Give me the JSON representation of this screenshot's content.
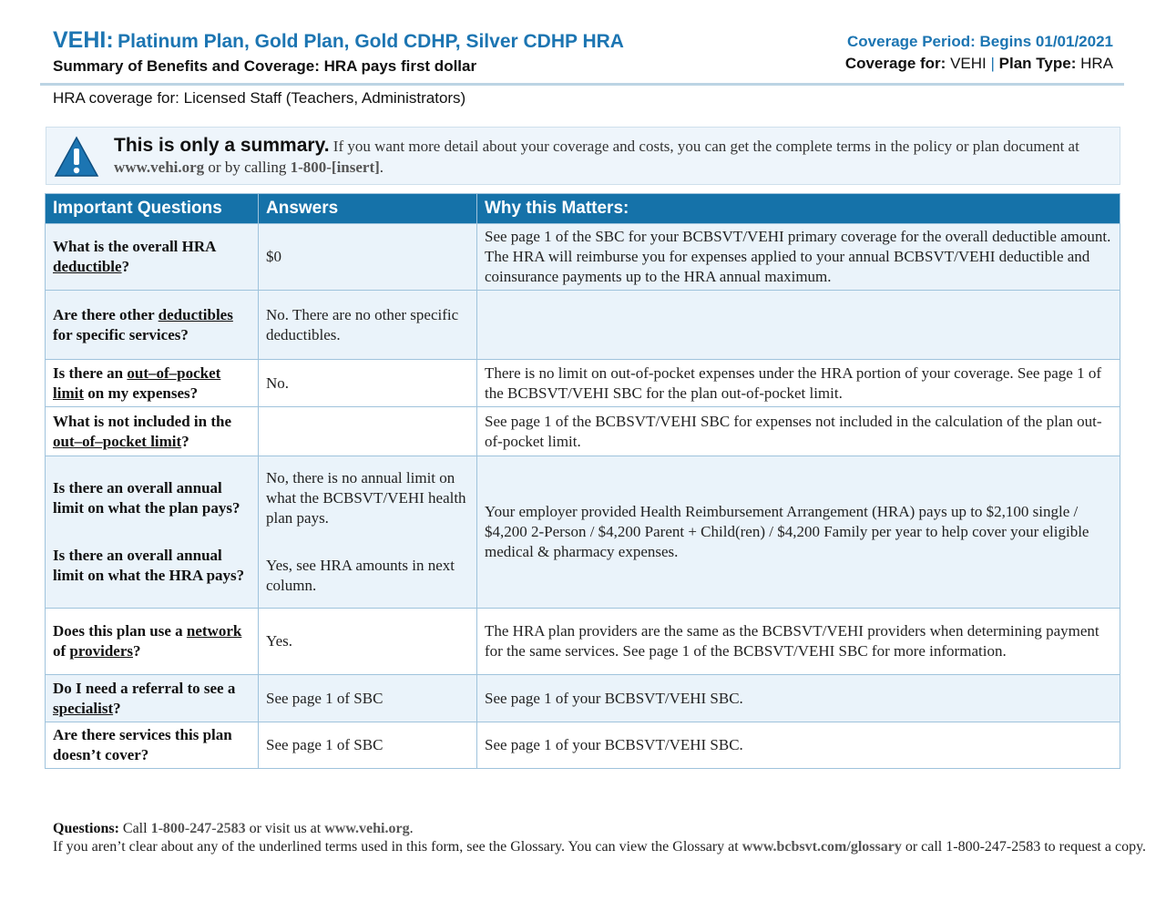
{
  "header": {
    "brand": "VEHI:",
    "plans": "Platinum Plan, Gold Plan, Gold CDHP, Silver CDHP HRA",
    "subtitle": "Summary of Benefits and Coverage: HRA pays first dollar",
    "coverage_period": "Coverage Period: Begins 01/01/2021",
    "coverage_for_label": "Coverage for:",
    "coverage_for": "VEHI",
    "separator": "|",
    "plan_type_label": "Plan Type:",
    "plan_type": "HRA"
  },
  "coverage_line": "HRA coverage for: Licensed Staff (Teachers, Administrators)",
  "notice": {
    "heading": "This is only a summary.",
    "text": [
      " If you want more detail about your coverage and costs, you can get the complete terms in the policy or plan document at ",
      "www.vehi.org",
      " or by calling ",
      "1-800-[insert]",
      "."
    ]
  },
  "table": {
    "headers": [
      "Important Questions",
      "Answers",
      "Why this Matters:"
    ],
    "rows": [
      {
        "question": [
          [
            "What is the overall HRA ",
            "deductible",
            "?"
          ]
        ],
        "answer": [
          "$0"
        ],
        "why": [
          "See page 1 of the SBC for your BCBSVT/VEHI primary coverage for the overall deductible amount.  The HRA will reimburse you for expenses applied to your annual BCBSVT/VEHI deductible and coinsurance payments up to the HRA annual maximum."
        ]
      },
      {
        "question": [
          [
            "Are there other ",
            "deductibles",
            " for specific services?"
          ]
        ],
        "answer": [
          "No. There are no other specific deductibles."
        ],
        "why": []
      },
      {
        "question": [
          [
            "Is there an ",
            "out–of–pocket limit",
            " on my expenses?"
          ]
        ],
        "answer": [
          "No."
        ],
        "why": [
          "There is no limit on out-of-pocket expenses under the HRA portion of your coverage.  See page 1 of the BCBSVT/VEHI SBC for the plan out-of-pocket limit."
        ]
      },
      {
        "question": [
          [
            "What is not included in the ",
            "out–of–pocket limit",
            "?"
          ]
        ],
        "answer": [],
        "why": [
          "See page 1 of the BCBSVT/VEHI SBC for expenses not included in the calculation of the plan out-of-pocket limit."
        ]
      },
      {
        "question": [
          [
            "Is there an overall annual limit on what the plan pays?"
          ],
          [
            "Is there an overall annual limit on what the HRA pays?"
          ]
        ],
        "answer": [
          "No, there is no annual limit on what the BCBSVT/VEHI health plan pays.",
          "Yes, see HRA amounts in next column."
        ],
        "why": [
          "Your employer provided Health Reimbursement Arrangement (HRA) pays up to $2,100 single / $4,200 2-Person / $4,200 Parent + Child(ren) / $4,200 Family per year to help cover your eligible medical & pharmacy expenses."
        ]
      },
      {
        "question": [
          [
            "Does this plan use a ",
            "network",
            " of ",
            "providers",
            "?"
          ]
        ],
        "answer": [
          "Yes."
        ],
        "why": [
          "The HRA plan providers are the same as the BCBSVT/VEHI providers when determining payment for the same services.  See page 1 of the BCBSVT/VEHI SBC for more information."
        ]
      },
      {
        "question": [
          [
            "Do I need a referral to see a ",
            "specialist",
            "?"
          ]
        ],
        "answer": [
          "See page 1 of SBC"
        ],
        "why": [
          "See page 1 of your BCBSVT/VEHI SBC."
        ]
      },
      {
        "question": [
          [
            "Are there services this plan doesn’t cover?"
          ]
        ],
        "answer": [
          "See page 1 of SBC"
        ],
        "why": [
          "See page 1 of your BCBSVT/VEHI SBC."
        ]
      }
    ]
  },
  "footer": {
    "questions": [
      "Questions:",
      " Call ",
      "1-800-247-2583",
      " or visit us at ",
      "www.vehi.org",
      "."
    ],
    "glossary": [
      "If you aren’t clear about any of the underlined terms used in this form, see the Glossary.  You can view the Glossary at ",
      "www.bcbsvt.com/glossary",
      " or call 1-800-247-2583 to request a copy."
    ]
  }
}
